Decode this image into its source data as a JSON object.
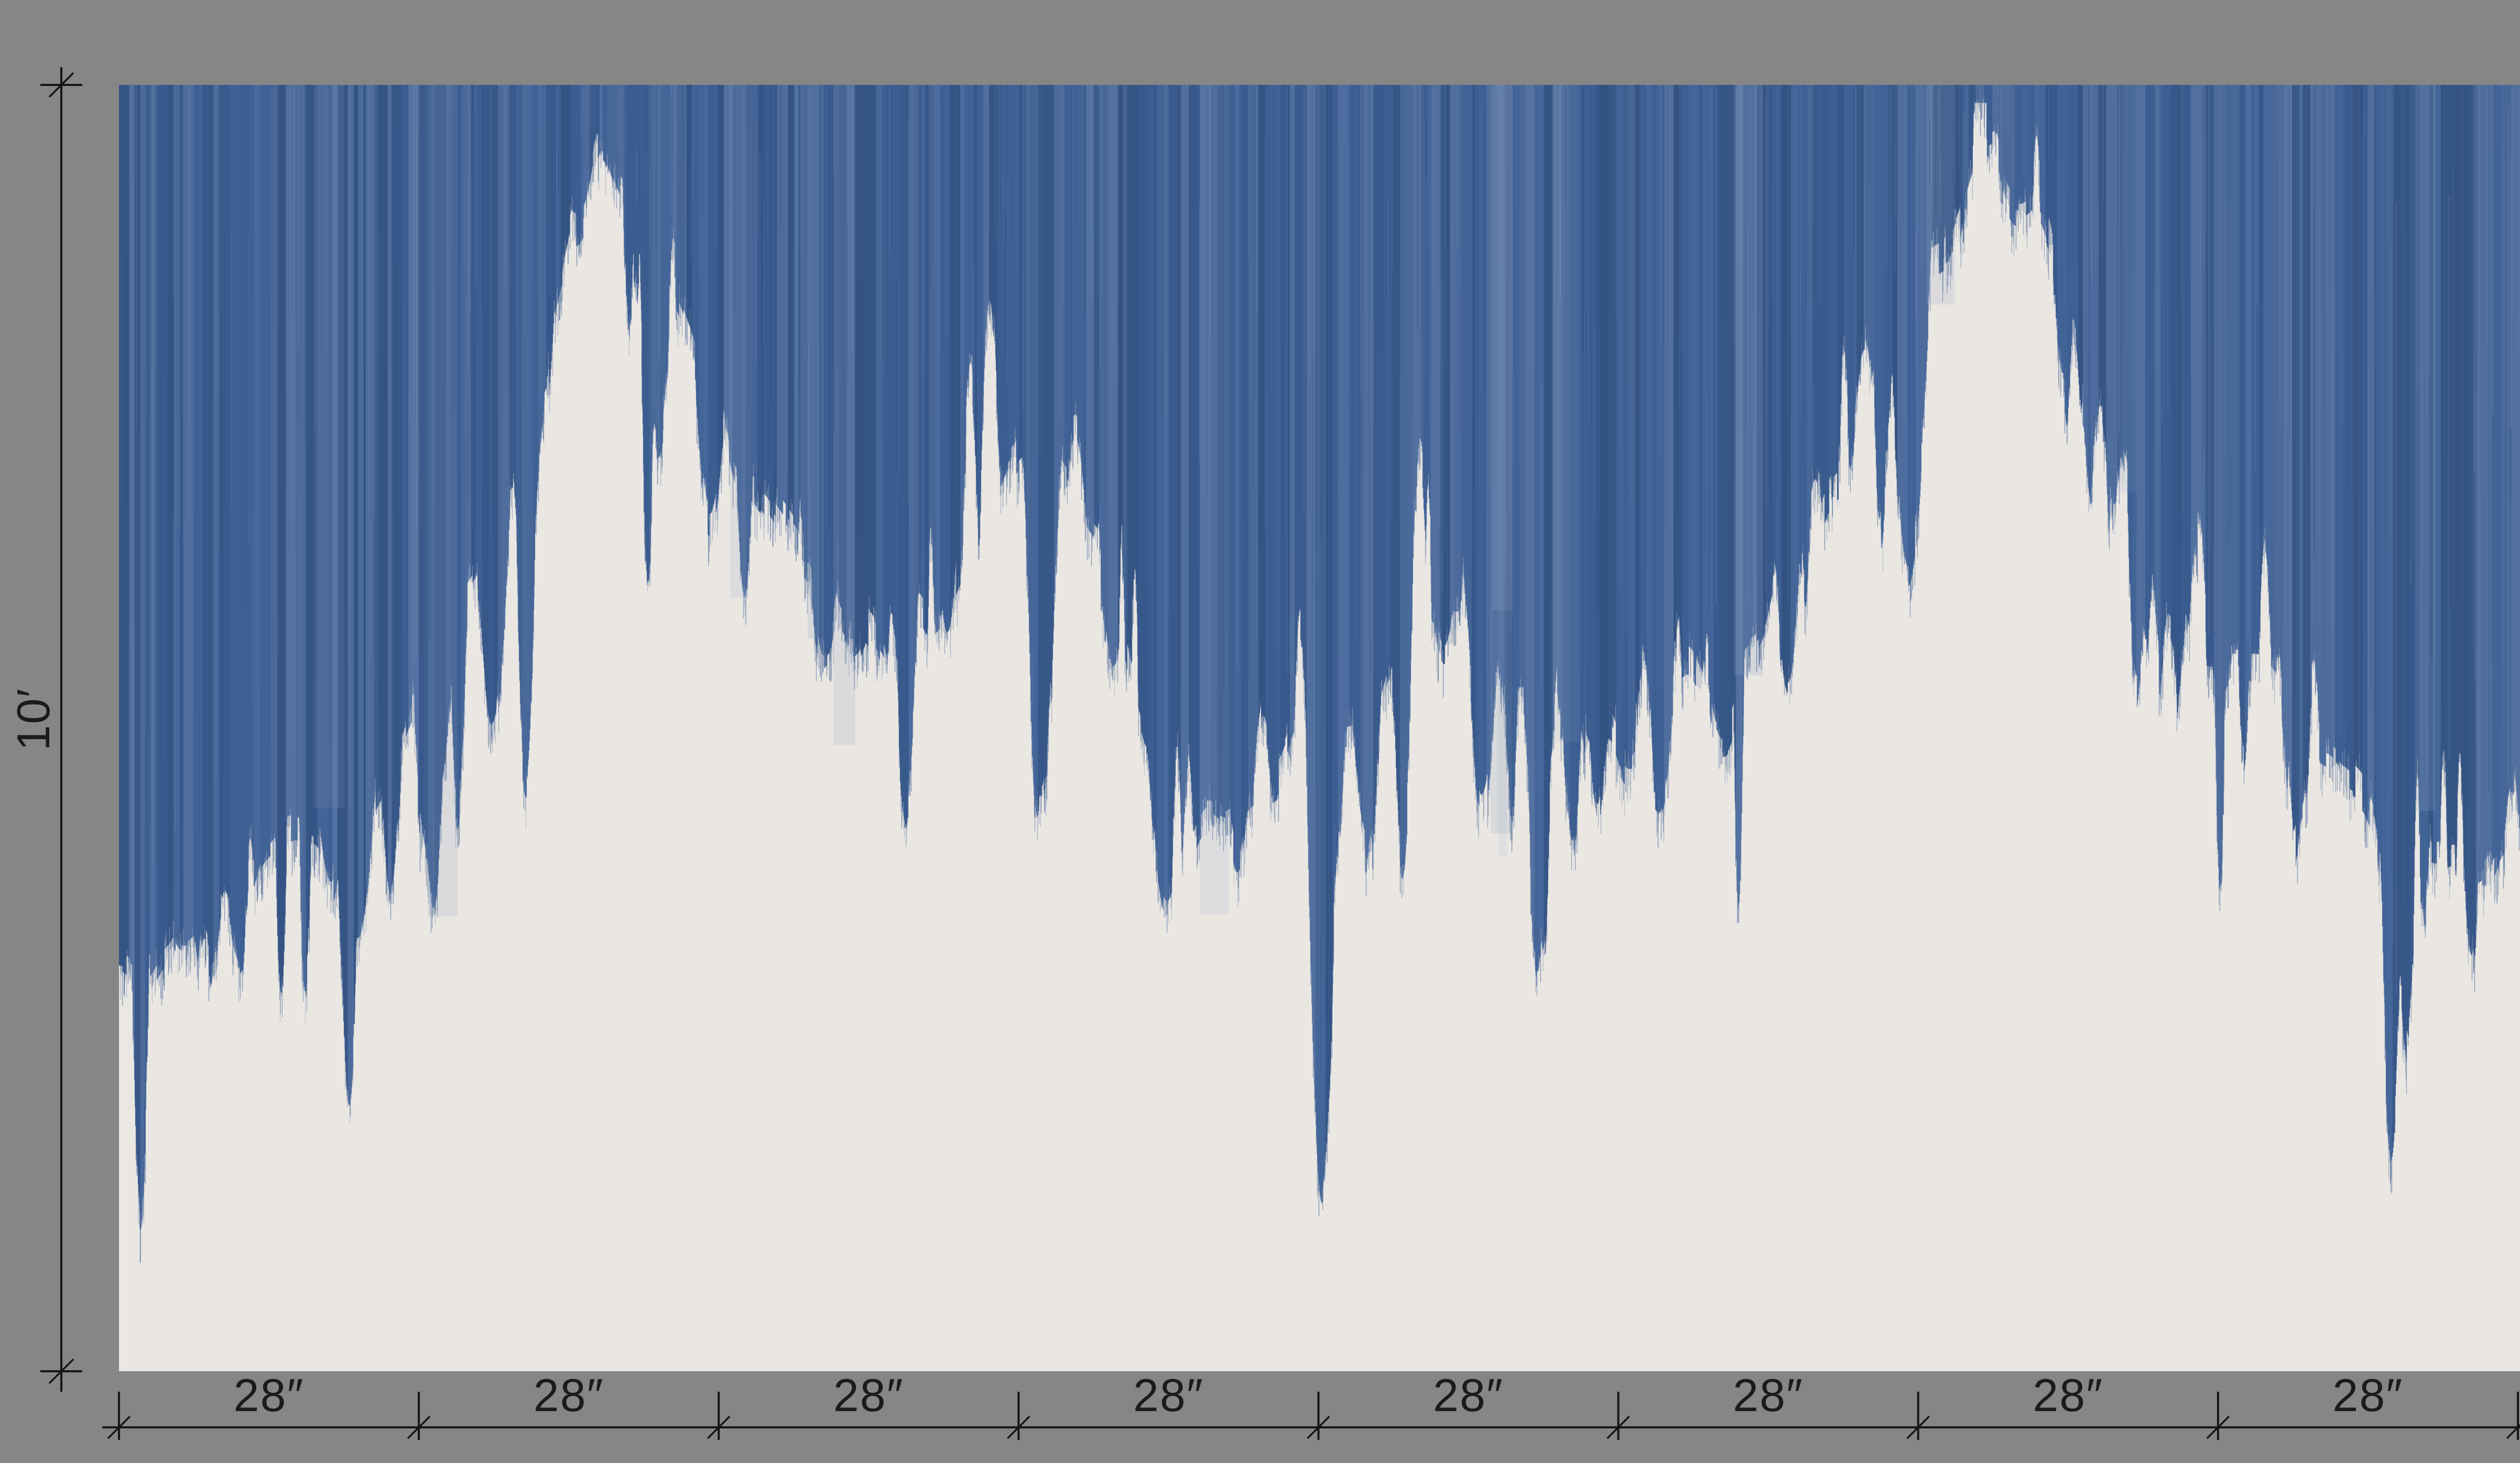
{
  "drawing": {
    "background_color": "#868686",
    "line_color": "#161616",
    "text_color": "#1b1b1b"
  },
  "panel": {
    "background": "#eae7e3",
    "paint_color_base": "#3e6094",
    "paint_color_dark": "#2f4d7c",
    "paint_color_light": "#748cb4",
    "paint_streak_light": "#93a7c6",
    "paint_streak_dark": "#243f66"
  },
  "dimensions": {
    "vertical": {
      "label": "10′"
    },
    "horizontal": {
      "labels": [
        "28″",
        "28″",
        "28″",
        "28″",
        "28″",
        "28″",
        "28″",
        "28″"
      ]
    }
  },
  "paint_profile": [
    [
      0.0,
      0.684
    ],
    [
      0.024,
      0.678
    ],
    [
      0.051,
      0.665
    ],
    [
      0.085,
      0.578
    ],
    [
      0.119,
      0.49
    ],
    [
      0.143,
      0.39
    ],
    [
      0.167,
      0.284
    ],
    [
      0.184,
      0.165
    ],
    [
      0.198,
      0.048
    ],
    [
      0.211,
      0.078
    ],
    [
      0.228,
      0.153
    ],
    [
      0.245,
      0.246
    ],
    [
      0.266,
      0.334
    ],
    [
      0.29,
      0.39
    ],
    [
      0.313,
      0.415
    ],
    [
      0.337,
      0.396
    ],
    [
      0.361,
      0.328
    ],
    [
      0.381,
      0.265
    ],
    [
      0.397,
      0.281
    ],
    [
      0.412,
      0.365
    ],
    [
      0.427,
      0.509
    ],
    [
      0.443,
      0.628
    ],
    [
      0.458,
      0.596
    ],
    [
      0.479,
      0.556
    ],
    [
      0.499,
      0.521
    ],
    [
      0.52,
      0.471
    ],
    [
      0.54,
      0.384
    ],
    [
      0.561,
      0.403
    ],
    [
      0.581,
      0.474
    ],
    [
      0.601,
      0.49
    ],
    [
      0.622,
      0.515
    ],
    [
      0.642,
      0.499
    ],
    [
      0.663,
      0.481
    ],
    [
      0.686,
      0.424
    ],
    [
      0.709,
      0.331
    ],
    [
      0.732,
      0.219
    ],
    [
      0.756,
      0.131
    ],
    [
      0.781,
      0.068
    ],
    [
      0.802,
      0.096
    ],
    [
      0.824,
      0.199
    ],
    [
      0.845,
      0.361
    ],
    [
      0.866,
      0.434
    ],
    [
      0.889,
      0.465
    ],
    [
      0.912,
      0.503
    ],
    [
      0.935,
      0.565
    ],
    [
      0.958,
      0.619
    ],
    [
      0.98,
      0.653
    ],
    [
      1.0,
      0.615
    ]
  ]
}
